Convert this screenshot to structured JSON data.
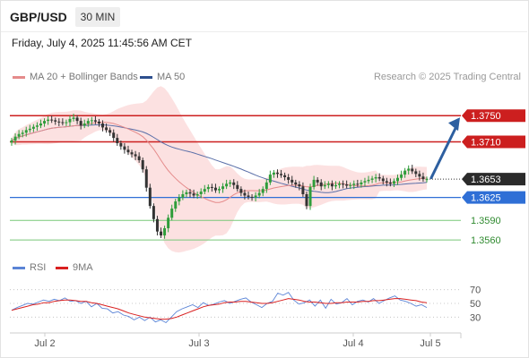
{
  "header": {
    "pair": "GBP/USD",
    "timeframe": "30 MIN"
  },
  "datetime": "Friday, July 4, 2025 11:45:56 AM CET",
  "copyright": "Research © 2025 Trading Central",
  "legend": {
    "ma20": "MA 20 + Bollinger Bands",
    "ma50": "MA 50",
    "rsi": "RSI",
    "rsi_ma": "9MA"
  },
  "colors": {
    "candle_up": "#2e9d3a",
    "candle_down": "#333333",
    "ma20": "#e58b8b",
    "ma50": "#5a6fa8",
    "bollinger_fill": "#fbdcdc",
    "resistance": "#cc1f1f",
    "pivot": "#2f6fd6",
    "support": "#79c879",
    "arrow": "#2d5fa0",
    "rsi": "#5b84d6",
    "rsi_ma": "#d92020"
  },
  "chart_data": [
    {
      "type": "candlestick",
      "title": "GBP/USD",
      "timeframe": "30 MIN",
      "x_tick_labels": [
        "Jul 2",
        "Jul 3",
        "Jul 4",
        "Jul 5"
      ],
      "ylim": [
        1.3537,
        1.379
      ],
      "levels": [
        {
          "value": 1.375,
          "label": "1.3750",
          "kind": "resistance"
        },
        {
          "value": 1.371,
          "label": "1.3710",
          "kind": "resistance"
        },
        {
          "value": 1.3653,
          "label": "1.3653",
          "kind": "last_price"
        },
        {
          "value": 1.3625,
          "label": "1.3625",
          "kind": "pivot"
        },
        {
          "value": 1.359,
          "label": "1.3590",
          "kind": "support"
        },
        {
          "value": 1.356,
          "label": "1.3560",
          "kind": "support"
        }
      ],
      "forecast_arrow": {
        "from": 1.3655,
        "to": 1.375,
        "direction": "up"
      },
      "close_path": [
        1.3712,
        1.3718,
        1.3722,
        1.3724,
        1.3728,
        1.373,
        1.3733,
        1.3735,
        1.3738,
        1.3742,
        1.3744,
        1.3743,
        1.3741,
        1.374,
        1.3739,
        1.374,
        1.3745,
        1.3747,
        1.3742,
        1.3735,
        1.3738,
        1.3742,
        1.3743,
        1.3741,
        1.3738,
        1.3732,
        1.3728,
        1.3724,
        1.3716,
        1.3708,
        1.3703,
        1.3698,
        1.3694,
        1.3691,
        1.3688,
        1.3682,
        1.3668,
        1.364,
        1.3612,
        1.3592,
        1.3573,
        1.3567,
        1.3578,
        1.3594,
        1.3608,
        1.3619,
        1.3625,
        1.363,
        1.3633,
        1.3631,
        1.3628,
        1.363,
        1.3634,
        1.3638,
        1.3641,
        1.364,
        1.3636,
        1.3638,
        1.3642,
        1.3646,
        1.3648,
        1.3644,
        1.3638,
        1.3632,
        1.3628,
        1.3626,
        1.3625,
        1.3628,
        1.3632,
        1.3638,
        1.3648,
        1.366,
        1.3663,
        1.3661,
        1.3659,
        1.3656,
        1.3652,
        1.3648,
        1.3645,
        1.3642,
        1.363,
        1.3612,
        1.3641,
        1.3652,
        1.3648,
        1.3642,
        1.3644,
        1.3646,
        1.3642,
        1.3644,
        1.3646,
        1.3645,
        1.3643,
        1.3644,
        1.3646,
        1.3645,
        1.3648,
        1.365,
        1.3652,
        1.3654,
        1.3656,
        1.3654,
        1.365,
        1.3648,
        1.3646,
        1.365,
        1.3655,
        1.366,
        1.3666,
        1.3669,
        1.3665,
        1.3661,
        1.3657,
        1.3653,
        1.3653
      ]
    },
    {
      "type": "line",
      "title": "RSI",
      "ylim": [
        20,
        80
      ],
      "y_tick_labels": [
        "70",
        "50",
        "30"
      ],
      "series": [
        {
          "name": "RSI",
          "values": [
            40,
            44,
            47,
            50,
            49,
            52,
            55,
            53,
            56,
            54,
            58,
            53,
            54,
            50,
            53,
            45,
            50,
            43,
            42,
            36,
            38,
            33,
            31,
            26,
            30,
            25,
            30,
            23,
            26,
            22,
            30,
            38,
            42,
            45,
            48,
            44,
            51,
            47,
            49,
            52,
            54,
            50,
            53,
            56,
            58,
            52,
            48,
            44,
            50,
            53,
            65,
            62,
            66,
            55,
            49,
            51,
            55,
            46,
            55,
            43,
            56,
            49,
            51,
            57,
            48,
            53,
            55,
            52,
            57,
            50,
            54,
            58,
            61,
            55,
            53,
            50,
            46,
            48,
            44
          ]
        },
        {
          "name": "9MA",
          "values": [
            40,
            42,
            44,
            46,
            48,
            49,
            51,
            51,
            53,
            54,
            55,
            55,
            54,
            53,
            53,
            51,
            50,
            48,
            46,
            44,
            42,
            39,
            36,
            34,
            32,
            30,
            29,
            28,
            27,
            27,
            28,
            30,
            33,
            36,
            39,
            42,
            45,
            47,
            48,
            49,
            51,
            52,
            52,
            53,
            53,
            52,
            51,
            50,
            50,
            51,
            53,
            55,
            57,
            56,
            55,
            53,
            52,
            52,
            51,
            50,
            50,
            51,
            51,
            52,
            52,
            52,
            53,
            53,
            54,
            54,
            55,
            56,
            57,
            57,
            56,
            55,
            54,
            52,
            51
          ]
        }
      ]
    }
  ]
}
